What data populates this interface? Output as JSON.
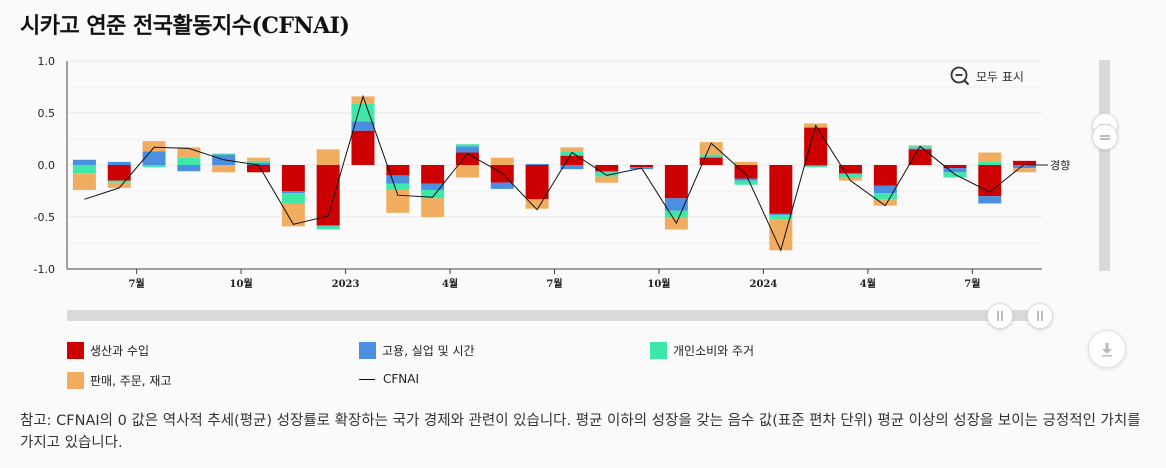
{
  "title": "시카고 연준 전국활동지수(CFNAI)",
  "controls": {
    "reset_zoom_label": "모두 표시"
  },
  "colors": {
    "production": "#cc0000",
    "employment": "#4a8fe0",
    "consumption": "#3ee8a8",
    "sales": "#f0ad60",
    "cfnai": "#111111",
    "grid": "#e6e6e6"
  },
  "legend": {
    "production": "생산과 수입",
    "employment": "고용, 실업 및 시간",
    "consumption": "개인소비와 주거",
    "sales": "판매, 주문, 재고",
    "cfnai": "CFNAI"
  },
  "note": "참고: CFNAI의 0 값은 역사적 추세(평균) 성장률로 확장하는 국가 경제와 관련이 있습니다. 평균 이하의 성장을 갖는 음수 값(표준 편차 단위) 평균 이상의 성장을 보이는 긍정적인 가치를 가지고 있습니다.",
  "chart_data": {
    "type": "bar",
    "stacked": true,
    "title": "시카고 연준 전국활동지수(CFNAI)",
    "ylim": [
      -1.0,
      1.0
    ],
    "yticks": [
      "1.0",
      "0.5",
      "0.0",
      "-0.5",
      "-1.0"
    ],
    "grid": true,
    "legend_position": "bottom",
    "x_tick_labels": [
      "7월",
      "10월",
      "2023",
      "4월",
      "7월",
      "10월",
      "2024",
      "4월",
      "7월"
    ],
    "x_tick_month_index": [
      2,
      5,
      8,
      11,
      14,
      17,
      20,
      23,
      26
    ],
    "line_end_label": "경향",
    "categories": [
      "2022-05",
      "2022-06",
      "2022-07",
      "2022-08",
      "2022-09",
      "2022-10",
      "2022-11",
      "2022-12",
      "2023-01",
      "2023-02",
      "2023-03",
      "2023-04",
      "2023-05",
      "2023-06",
      "2023-07",
      "2023-08",
      "2023-09",
      "2023-10",
      "2023-11",
      "2023-12",
      "2024-01",
      "2024-02",
      "2024-03",
      "2024-04",
      "2024-05",
      "2024-06",
      "2024-07",
      "2024-08"
    ],
    "series": [
      {
        "name": "생산과 수입",
        "key": "production",
        "values": [
          0.0,
          -0.15,
          0.0,
          0.0,
          0.0,
          -0.07,
          -0.25,
          -0.58,
          0.33,
          -0.1,
          -0.18,
          0.12,
          -0.17,
          -0.33,
          0.09,
          -0.06,
          -0.02,
          -0.32,
          0.07,
          -0.13,
          -0.47,
          0.36,
          -0.08,
          -0.2,
          0.15,
          -0.03,
          -0.3,
          0.04
        ]
      },
      {
        "name": "고용, 실업 및 시간",
        "key": "employment",
        "values": [
          0.05,
          0.03,
          0.13,
          -0.06,
          0.1,
          0.02,
          -0.02,
          -0.01,
          0.09,
          -0.08,
          -0.06,
          0.06,
          -0.06,
          0.01,
          -0.04,
          -0.01,
          -0.02,
          -0.12,
          0.01,
          -0.02,
          -0.01,
          -0.01,
          -0.01,
          -0.07,
          0.01,
          -0.04,
          -0.07,
          -0.03
        ]
      },
      {
        "name": "개인소비와 주거",
        "key": "consumption",
        "values": [
          -0.08,
          -0.02,
          -0.02,
          0.07,
          0.01,
          0.02,
          -0.1,
          -0.03,
          0.17,
          -0.06,
          -0.08,
          0.02,
          0.0,
          0.0,
          0.04,
          -0.04,
          0.0,
          -0.06,
          0.02,
          -0.04,
          -0.04,
          -0.01,
          -0.03,
          -0.06,
          0.02,
          -0.05,
          0.03,
          0.0
        ]
      },
      {
        "name": "판매, 주문, 재고",
        "key": "sales",
        "values": [
          -0.16,
          -0.05,
          0.1,
          0.1,
          -0.07,
          0.03,
          -0.22,
          0.15,
          0.07,
          -0.22,
          -0.18,
          -0.12,
          0.07,
          -0.09,
          0.04,
          -0.06,
          0.0,
          -0.12,
          0.12,
          0.03,
          -0.3,
          0.04,
          -0.03,
          -0.06,
          0.01,
          0.0,
          0.09,
          -0.04
        ]
      }
    ],
    "line": {
      "name": "CFNAI",
      "values": [
        -0.33,
        -0.22,
        0.17,
        0.16,
        0.05,
        0.0,
        -0.57,
        -0.49,
        0.66,
        -0.29,
        -0.31,
        0.11,
        -0.08,
        -0.43,
        0.12,
        -0.1,
        -0.03,
        -0.56,
        0.21,
        -0.09,
        -0.82,
        0.38,
        -0.15,
        -0.39,
        0.18,
        -0.09,
        -0.26,
        0.01
      ]
    }
  }
}
